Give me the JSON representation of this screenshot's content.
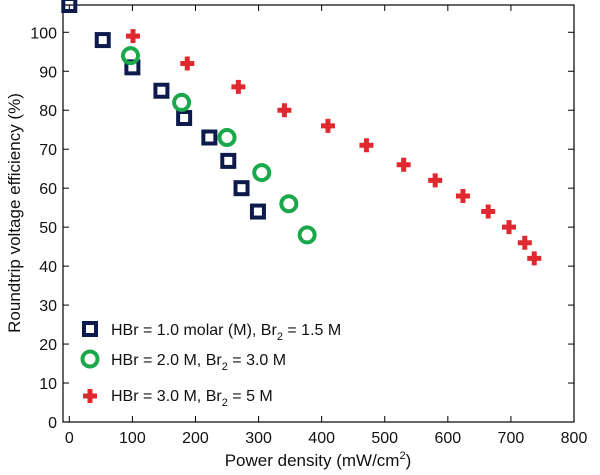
{
  "chart_data": {
    "type": "scatter",
    "xlabel": "Power density (mW/cm",
    "xlabel_sup": "2",
    "xlabel_suffix": ")",
    "ylabel": "Roundtrip voltage efficiency (%)",
    "xlim": [
      -10,
      800
    ],
    "ylim": [
      0,
      107
    ],
    "xticks": [
      0,
      100,
      200,
      300,
      400,
      500,
      600,
      700,
      800
    ],
    "yticks": [
      0,
      10,
      20,
      30,
      40,
      50,
      60,
      70,
      80,
      90,
      100
    ],
    "grid": false,
    "legend_position": "bottom-left",
    "series": [
      {
        "label_main": "HBr = 1.0 molar (M), Br",
        "label_sub": "2",
        "label_end": " = 1.5 M",
        "marker": "square",
        "color": "#0d1b4c",
        "points": [
          [
            0,
            107
          ],
          [
            53,
            98
          ],
          [
            100,
            91
          ],
          [
            146,
            85
          ],
          [
            182,
            78
          ],
          [
            222,
            73
          ],
          [
            252,
            67
          ],
          [
            273,
            60
          ],
          [
            299,
            54
          ]
        ]
      },
      {
        "label_main": "HBr = 2.0 M, Br",
        "label_sub": "2",
        "label_end": " = 3.0 M",
        "marker": "circle",
        "color": "#1aa84a",
        "points": [
          [
            97,
            94
          ],
          [
            178,
            82
          ],
          [
            250,
            73
          ],
          [
            305,
            64
          ],
          [
            348,
            56
          ],
          [
            377,
            48
          ]
        ]
      },
      {
        "label_main": "HBr = 3.0 M, Br",
        "label_sub": "2",
        "label_end": " = 5 M",
        "marker": "plus",
        "color": "#e0282e",
        "points": [
          [
            101,
            99
          ],
          [
            187,
            92
          ],
          [
            268,
            86
          ],
          [
            341,
            80
          ],
          [
            410,
            76
          ],
          [
            471,
            71
          ],
          [
            530,
            66
          ],
          [
            580,
            62
          ],
          [
            624,
            58
          ],
          [
            664,
            54
          ],
          [
            697,
            50
          ],
          [
            722,
            46
          ],
          [
            737,
            42
          ]
        ]
      }
    ]
  }
}
